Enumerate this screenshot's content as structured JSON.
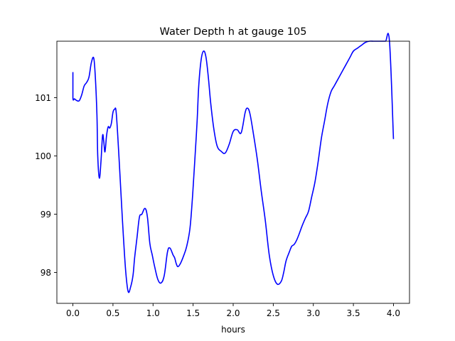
{
  "chart_data": {
    "type": "line",
    "title": "Water Depth h at gauge 105",
    "xlabel": "hours",
    "ylabel": "",
    "xlim": [
      -0.2,
      4.2
    ],
    "ylim": [
      97.47,
      101.97
    ],
    "xticks": [
      0.0,
      0.5,
      1.0,
      1.5,
      2.0,
      2.5,
      3.0,
      3.5,
      4.0
    ],
    "xtick_labels": [
      "0.0",
      "0.5",
      "1.0",
      "1.5",
      "2.0",
      "2.5",
      "3.0",
      "3.5",
      "4.0"
    ],
    "yticks": [
      98,
      99,
      100,
      101
    ],
    "ytick_labels": [
      "98",
      "99",
      "100",
      "101"
    ],
    "grid": false,
    "legend": "none",
    "series": [
      {
        "color": "#0000ff",
        "x": [
          0.0,
          0.0,
          0.02,
          0.05,
          0.08,
          0.11,
          0.14,
          0.17,
          0.2,
          0.23,
          0.26,
          0.28,
          0.3,
          0.31,
          0.33,
          0.35,
          0.37,
          0.385,
          0.4,
          0.42,
          0.44,
          0.46,
          0.48,
          0.5,
          0.52,
          0.54,
          0.57,
          0.6,
          0.63,
          0.66,
          0.69,
          0.72,
          0.75,
          0.77,
          0.8,
          0.83,
          0.86,
          0.9,
          0.93,
          0.96,
          0.99,
          1.02,
          1.06,
          1.1,
          1.14,
          1.18,
          1.21,
          1.25,
          1.27,
          1.29,
          1.31,
          1.34,
          1.38,
          1.42,
          1.46,
          1.49,
          1.52,
          1.55,
          1.57,
          1.6,
          1.63,
          1.66,
          1.69,
          1.72,
          1.76,
          1.8,
          1.85,
          1.9,
          1.95,
          2.0,
          2.05,
          2.1,
          2.15,
          2.18,
          2.21,
          2.25,
          2.3,
          2.35,
          2.4,
          2.45,
          2.5,
          2.55,
          2.6,
          2.63,
          2.66,
          2.7,
          2.73,
          2.76,
          2.79,
          2.82,
          2.86,
          2.9,
          2.94,
          2.98,
          3.02,
          3.06,
          3.1,
          3.14,
          3.18,
          3.22,
          3.26,
          3.3,
          3.34,
          3.38,
          3.42,
          3.46,
          3.5,
          3.55,
          3.6,
          3.65,
          3.7,
          3.75,
          3.8,
          3.85,
          3.9,
          3.95,
          4.0
        ],
        "y": [
          101.44,
          101.0,
          100.98,
          100.95,
          100.95,
          101.05,
          101.2,
          101.26,
          101.35,
          101.6,
          101.68,
          101.35,
          100.7,
          100.0,
          99.62,
          99.9,
          100.35,
          100.25,
          100.07,
          100.35,
          100.5,
          100.48,
          100.56,
          100.75,
          100.8,
          100.75,
          100.1,
          99.35,
          98.62,
          98.0,
          97.67,
          97.75,
          97.95,
          98.25,
          98.6,
          98.95,
          99.0,
          99.1,
          98.95,
          98.5,
          98.3,
          98.1,
          97.88,
          97.82,
          97.95,
          98.35,
          98.42,
          98.3,
          98.25,
          98.15,
          98.1,
          98.15,
          98.28,
          98.45,
          98.75,
          99.25,
          99.9,
          100.6,
          101.2,
          101.65,
          101.8,
          101.7,
          101.35,
          100.9,
          100.45,
          100.17,
          100.08,
          100.05,
          100.2,
          100.42,
          100.45,
          100.4,
          100.75,
          100.82,
          100.72,
          100.4,
          99.95,
          99.4,
          98.9,
          98.3,
          97.95,
          97.8,
          97.85,
          98.0,
          98.2,
          98.35,
          98.45,
          98.48,
          98.55,
          98.65,
          98.8,
          98.93,
          99.05,
          99.3,
          99.55,
          99.9,
          100.3,
          100.6,
          100.9,
          101.1,
          101.2,
          101.3,
          101.4,
          101.5,
          101.6,
          101.7,
          101.8,
          101.85,
          101.9,
          101.95,
          101.97,
          101.97,
          101.97,
          101.97,
          101.97,
          101.97,
          100.29
        ]
      }
    ]
  }
}
